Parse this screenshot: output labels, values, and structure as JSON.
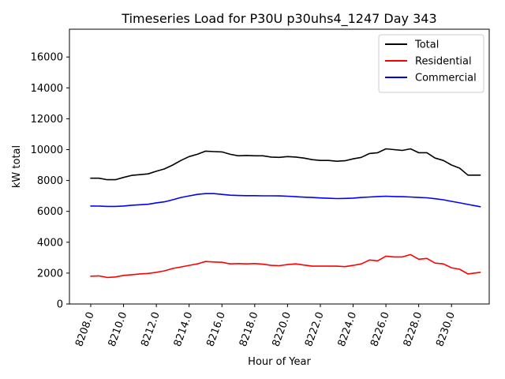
{
  "chart_data": {
    "type": "line",
    "title": "Timeseries Load for P30U p30uhs4_1247  Day 343",
    "xlabel": "Hour of Year",
    "ylabel": "kW total",
    "xlim": [
      8206.7,
      8232.3
    ],
    "ylim": [
      0,
      17800
    ],
    "xticks": [
      8208,
      8210,
      8212,
      8214,
      8216,
      8218,
      8220,
      8222,
      8224,
      8226,
      8228,
      8230
    ],
    "xtick_labels": [
      "8208.0",
      "8210.0",
      "8212.0",
      "8214.0",
      "8216.0",
      "8218.0",
      "8220.0",
      "8222.0",
      "8224.0",
      "8226.0",
      "8228.0",
      "8230.0"
    ],
    "yticks": [
      0,
      2000,
      4000,
      6000,
      8000,
      10000,
      12000,
      14000,
      16000
    ],
    "ytick_labels": [
      "0",
      "2000",
      "4000",
      "6000",
      "8000",
      "10000",
      "12000",
      "14000",
      "16000"
    ],
    "legend_position": "top-right",
    "series": [
      {
        "name": "Total",
        "color": "#000000",
        "x": [
          8208.0,
          8208.5,
          8209.0,
          8209.5,
          8210.0,
          8210.5,
          8211.0,
          8211.5,
          8212.0,
          8212.5,
          8213.0,
          8213.5,
          8214.0,
          8214.5,
          8215.0,
          8215.5,
          8216.0,
          8216.5,
          8217.0,
          8217.5,
          8218.0,
          8218.5,
          8219.0,
          8219.5,
          8220.0,
          8220.5,
          8221.0,
          8221.5,
          8222.0,
          8222.5,
          8223.0,
          8223.5,
          8224.0,
          8224.5,
          8225.0,
          8225.5,
          8226.0,
          8226.5,
          8227.0,
          8227.5,
          8228.0,
          8228.5,
          8229.0,
          8229.5,
          8230.0,
          8230.5,
          8231.0,
          8231.75
        ],
        "values": [
          8150,
          8150,
          8050,
          8050,
          8200,
          8330,
          8380,
          8430,
          8600,
          8750,
          9000,
          9300,
          9550,
          9700,
          9900,
          9870,
          9850,
          9700,
          9600,
          9620,
          9600,
          9600,
          9520,
          9500,
          9550,
          9520,
          9450,
          9350,
          9300,
          9300,
          9250,
          9280,
          9400,
          9500,
          9750,
          9800,
          10050,
          10000,
          9950,
          10050,
          9800,
          9800,
          9450,
          9300,
          9000,
          8800,
          8350,
          8350
        ]
      },
      {
        "name": "Residential",
        "color": "#ff0000",
        "x": [
          8208.0,
          8208.5,
          8209.0,
          8209.5,
          8210.0,
          8210.5,
          8211.0,
          8211.5,
          8212.0,
          8212.5,
          8213.0,
          8213.5,
          8214.0,
          8214.5,
          8215.0,
          8215.5,
          8216.0,
          8216.5,
          8217.0,
          8217.5,
          8218.0,
          8218.5,
          8219.0,
          8219.5,
          8220.0,
          8220.5,
          8221.0,
          8221.5,
          8222.0,
          8222.5,
          8223.0,
          8223.5,
          8224.0,
          8224.5,
          8225.0,
          8225.5,
          8226.0,
          8226.5,
          8227.0,
          8227.5,
          8228.0,
          8228.5,
          8229.0,
          8229.5,
          8230.0,
          8230.5,
          8231.0,
          8231.75
        ],
        "values": [
          1800,
          1820,
          1720,
          1750,
          1850,
          1900,
          1950,
          1980,
          2050,
          2150,
          2300,
          2400,
          2500,
          2600,
          2750,
          2720,
          2700,
          2600,
          2620,
          2600,
          2620,
          2580,
          2500,
          2480,
          2550,
          2600,
          2520,
          2450,
          2450,
          2450,
          2450,
          2420,
          2500,
          2600,
          2850,
          2800,
          3100,
          3050,
          3050,
          3200,
          2900,
          2950,
          2650,
          2600,
          2350,
          2250,
          1950,
          2050
        ]
      },
      {
        "name": "Commercial",
        "color": "#0000ff",
        "x": [
          8208.0,
          8208.5,
          8209.0,
          8209.5,
          8210.0,
          8210.5,
          8211.0,
          8211.5,
          8212.0,
          8212.5,
          8213.0,
          8213.5,
          8214.0,
          8214.5,
          8215.0,
          8215.5,
          8216.0,
          8216.5,
          8217.0,
          8217.5,
          8218.0,
          8218.5,
          8219.0,
          8219.5,
          8220.0,
          8220.5,
          8221.0,
          8221.5,
          8222.0,
          8222.5,
          8223.0,
          8223.5,
          8224.0,
          8224.5,
          8225.0,
          8225.5,
          8226.0,
          8226.5,
          8227.0,
          8227.5,
          8228.0,
          8228.5,
          8229.0,
          8229.5,
          8230.0,
          8230.5,
          8231.0,
          8231.75
        ],
        "values": [
          6350,
          6340,
          6320,
          6320,
          6350,
          6400,
          6430,
          6460,
          6550,
          6620,
          6750,
          6900,
          7000,
          7100,
          7150,
          7150,
          7100,
          7050,
          7030,
          7020,
          7020,
          7010,
          7010,
          7000,
          6980,
          6950,
          6920,
          6900,
          6870,
          6850,
          6830,
          6840,
          6860,
          6900,
          6930,
          6960,
          6980,
          6960,
          6950,
          6930,
          6900,
          6880,
          6820,
          6750,
          6650,
          6550,
          6450,
          6300
        ]
      }
    ]
  }
}
